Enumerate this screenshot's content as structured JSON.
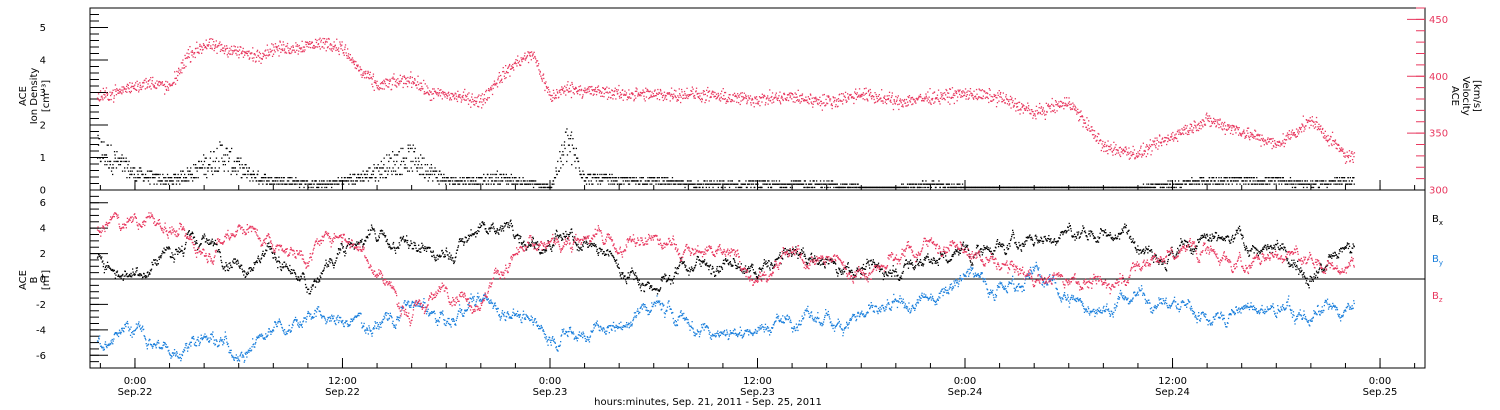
{
  "chart_data": [
    {
      "type": "scatter",
      "panel": "top",
      "ylabel_lines": [
        "ACE",
        "Ion Density"
      ],
      "ylabel_unit": "[cm⁻³]",
      "ylim": [
        0,
        5.6
      ],
      "yticks": [
        "0",
        "1",
        "2",
        "3",
        "4",
        "5"
      ],
      "y2label_lines": [
        "ACE",
        "Velocity"
      ],
      "y2label_unit": "[km/s]",
      "y2lim": [
        300,
        460
      ],
      "y2ticks": [
        "300",
        "350",
        "400",
        "450"
      ],
      "series": [
        {
          "axis": "left",
          "color": "#000000",
          "x_hours": [
            -2,
            0,
            2,
            3.5,
            5,
            6,
            7,
            8,
            9,
            10,
            11,
            12,
            13,
            14,
            15,
            16,
            17,
            18,
            19,
            20,
            21,
            22,
            23,
            24,
            25,
            26,
            28,
            30,
            32,
            34,
            36,
            38,
            40,
            42,
            44,
            46,
            48,
            50,
            52,
            54,
            56,
            58,
            60,
            62,
            64,
            66,
            68,
            70
          ],
          "values": [
            1.2,
            0.5,
            0.3,
            0.6,
            1.1,
            0.7,
            0.4,
            0.3,
            0.3,
            0.2,
            0.2,
            0.3,
            0.4,
            0.6,
            0.9,
            1.0,
            0.6,
            0.3,
            0.3,
            0.3,
            0.4,
            0.3,
            0.2,
            0.1,
            1.5,
            0.4,
            0.3,
            0.3,
            0.2,
            0.2,
            0.2,
            0.2,
            0.2,
            0.1,
            0.1,
            0.2,
            0.1,
            0.1,
            0.1,
            0.1,
            0.1,
            0.1,
            0.2,
            0.3,
            0.3,
            0.3,
            0.2,
            0.3
          ]
        },
        {
          "axis": "right",
          "color": "#e8385f",
          "x_hours": [
            -2,
            0,
            1,
            2,
            3,
            4,
            5,
            6,
            7,
            8,
            9,
            10,
            11,
            12,
            13,
            14,
            15,
            16,
            17,
            18,
            19,
            20,
            21,
            22,
            23,
            24,
            25,
            26,
            28,
            30,
            32,
            34,
            36,
            38,
            40,
            42,
            44,
            46,
            48,
            50,
            52,
            54,
            56,
            58,
            60,
            62,
            64,
            66,
            68,
            70
          ],
          "values": [
            382,
            392,
            395,
            390,
            418,
            428,
            425,
            422,
            418,
            425,
            425,
            428,
            430,
            425,
            405,
            392,
            395,
            398,
            385,
            384,
            382,
            378,
            398,
            412,
            420,
            382,
            390,
            388,
            385,
            384,
            385,
            382,
            380,
            382,
            378,
            385,
            378,
            382,
            385,
            382,
            368,
            378,
            338,
            332,
            348,
            362,
            352,
            340,
            362,
            330
          ]
        }
      ]
    },
    {
      "type": "scatter",
      "panel": "bottom",
      "ylabel_lines": [
        "ACE",
        "B"
      ],
      "ylabel_unit": "[nT]",
      "ylim": [
        -7,
        7
      ],
      "yticks": [
        "-6",
        "-4",
        "-2",
        "0",
        "2",
        "4",
        "6"
      ],
      "legend_position": "right",
      "series": [
        {
          "name": "Bx",
          "label_main": "B",
          "label_sub": "x",
          "color": "#000000",
          "x_hours": [
            -2,
            0,
            2,
            4,
            6,
            8,
            10,
            12,
            14,
            16,
            18,
            20,
            22,
            24,
            26,
            28,
            30,
            32,
            34,
            36,
            38,
            40,
            42,
            44,
            46,
            48,
            50,
            52,
            54,
            56,
            58,
            60,
            62,
            64,
            66,
            68,
            70
          ],
          "values": [
            1.5,
            0.5,
            2.5,
            3.0,
            1.5,
            2.0,
            -1.0,
            3.0,
            3.2,
            2.5,
            1.5,
            4.2,
            4.0,
            2.5,
            3.0,
            1.0,
            -0.5,
            1.5,
            1.0,
            0.5,
            2.0,
            1.5,
            1.0,
            0.8,
            1.5,
            2.0,
            2.8,
            3.0,
            3.5,
            3.8,
            3.5,
            2.0,
            2.8,
            3.0,
            2.0,
            1.0,
            2.0
          ]
        },
        {
          "name": "By",
          "label_main": "B",
          "label_sub": "y",
          "color": "#1a7fdc",
          "x_hours": [
            -2,
            0,
            2,
            4,
            6,
            8,
            10,
            12,
            14,
            16,
            18,
            20,
            22,
            24,
            26,
            28,
            30,
            32,
            34,
            36,
            38,
            40,
            42,
            44,
            46,
            48,
            50,
            52,
            54,
            56,
            58,
            60,
            62,
            64,
            66,
            68,
            70
          ],
          "values": [
            -4.5,
            -3.8,
            -5.8,
            -4.0,
            -5.8,
            -3.5,
            -2.5,
            -3.5,
            -3.2,
            -2.0,
            -3.5,
            -1.8,
            -2.5,
            -4.5,
            -4.2,
            -3.8,
            -2.0,
            -3.5,
            -4.0,
            -3.8,
            -3.0,
            -3.5,
            -2.5,
            -2.8,
            -1.5,
            1.0,
            -0.5,
            0.5,
            -1.5,
            -2.5,
            -1.0,
            -2.0,
            -3.0,
            -2.5,
            -2.5,
            -3.0,
            -2.5
          ]
        },
        {
          "name": "Bz",
          "label_main": "B",
          "label_sub": "z",
          "color": "#e8385f",
          "x_hours": [
            -2,
            0,
            2,
            4,
            6,
            8,
            10,
            12,
            14,
            16,
            18,
            20,
            22,
            24,
            26,
            28,
            30,
            32,
            34,
            36,
            38,
            40,
            42,
            44,
            46,
            48,
            50,
            52,
            54,
            56,
            58,
            60,
            62,
            64,
            66,
            68,
            70
          ],
          "values": [
            4.0,
            5.0,
            4.0,
            2.5,
            4.5,
            3.0,
            2.0,
            4.0,
            1.0,
            -3.0,
            -0.5,
            -1.5,
            2.0,
            3.0,
            3.5,
            2.5,
            3.0,
            2.0,
            2.5,
            0.5,
            1.5,
            1.5,
            0.5,
            2.0,
            3.0,
            2.0,
            1.0,
            0.0,
            0.5,
            -0.5,
            1.0,
            2.0,
            2.5,
            1.0,
            2.0,
            1.5,
            1.0
          ]
        }
      ]
    }
  ],
  "x_axis": {
    "range_hours": [
      -2.6,
      74.6
    ],
    "ticks": [
      {
        "hours": 0,
        "time": "0:00",
        "date": "Sep.22"
      },
      {
        "hours": 12,
        "time": "12:00",
        "date": "Sep.22"
      },
      {
        "hours": 24,
        "time": "0:00",
        "date": "Sep.23"
      },
      {
        "hours": 36,
        "time": "12:00",
        "date": "Sep.23"
      },
      {
        "hours": 48,
        "time": "0:00",
        "date": "Sep.24"
      },
      {
        "hours": 60,
        "time": "12:00",
        "date": "Sep.24"
      },
      {
        "hours": 72,
        "time": "0:00",
        "date": "Sep.25"
      }
    ],
    "data_end_hours": 70.5
  },
  "footer": "hours:minutes, Sep. 21, 2011 - Sep. 25, 2011"
}
